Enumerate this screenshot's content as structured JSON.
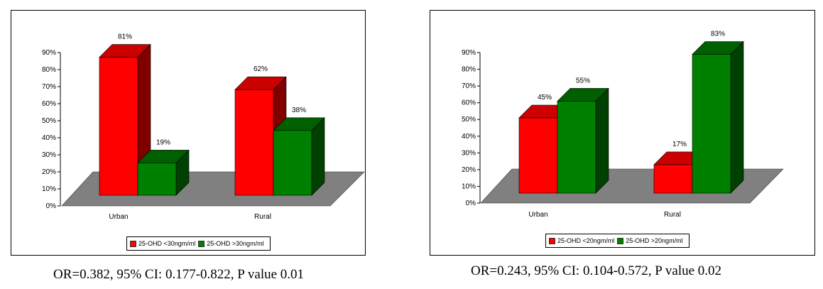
{
  "chart_data": [
    {
      "type": "bar",
      "categories": [
        "Urban",
        "Rural"
      ],
      "series": [
        {
          "name": "25-OHD <30ngm/ml",
          "values": [
            81,
            62
          ],
          "labels": [
            "81%",
            "62%"
          ]
        },
        {
          "name": "25-OHD >30ngm/ml",
          "values": [
            19,
            38
          ],
          "labels": [
            "19%",
            "38%"
          ]
        }
      ],
      "yticks": [
        "0%",
        "10%",
        "20%",
        "30%",
        "40%",
        "50%",
        "60%",
        "70%",
        "80%",
        "90%"
      ],
      "ylim": [
        0,
        90
      ],
      "legend_placement": "bottom",
      "style": "3d-clustered",
      "caption": "OR=0.382, 95% CI: 0.177-0.822, P value 0.01"
    },
    {
      "type": "bar",
      "categories": [
        "Urban",
        "Rural"
      ],
      "series": [
        {
          "name": "25-OHD <20ngm/ml",
          "values": [
            45,
            17
          ],
          "labels": [
            "45%",
            "17%"
          ]
        },
        {
          "name": "25-OHD >20ngm/ml",
          "values": [
            55,
            83
          ],
          "labels": [
            "55%",
            "83%"
          ]
        }
      ],
      "yticks": [
        "0%",
        "10%",
        "20%",
        "30%",
        "40%",
        "50%",
        "60%",
        "70%",
        "80%",
        "90%"
      ],
      "ylim": [
        0,
        90
      ],
      "legend_placement": "bottom",
      "style": "3d-clustered",
      "caption": "OR=0.243, 95% CI: 0.104-0.572, P value 0.02"
    }
  ],
  "colors": {
    "series1_front": "#ff0000",
    "series1_top": "#cc0000",
    "series1_side": "#800000",
    "series2_front": "#008000",
    "series2_top": "#006000",
    "series2_side": "#004000",
    "floor": "#808080"
  }
}
